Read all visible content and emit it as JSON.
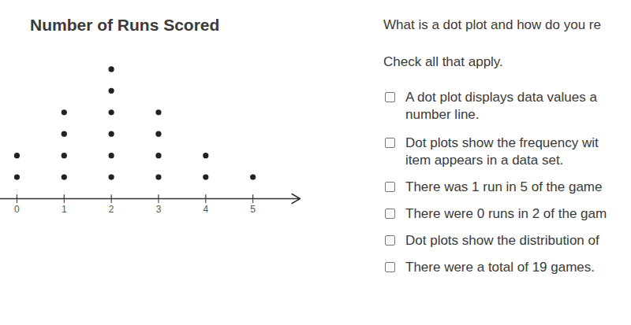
{
  "chart_data": {
    "type": "dot",
    "title": "Number of Runs Scored",
    "x": [
      0,
      1,
      2,
      3,
      4,
      5
    ],
    "values": [
      2,
      4,
      6,
      4,
      2,
      1
    ],
    "xlim": [
      -0.35,
      6
    ],
    "xticks": [
      0,
      1,
      2,
      3,
      4,
      5
    ],
    "ylim": [
      0,
      7
    ],
    "tick_labels": "x",
    "color": "#222222"
  },
  "question": {
    "prompt": "What is a dot plot and how do you re",
    "instruction": "Check all that apply.",
    "options": [
      [
        "A dot plot displays data values a",
        "number line."
      ],
      [
        "Dot plots show the frequency wit",
        "item appears in a data set."
      ],
      [
        "There was 1 run in 5 of the game"
      ],
      [
        "There were 0 runs in 2 of the gam"
      ],
      [
        "Dot plots show the distribution of"
      ],
      [
        "There were a total of 19 games."
      ]
    ]
  }
}
